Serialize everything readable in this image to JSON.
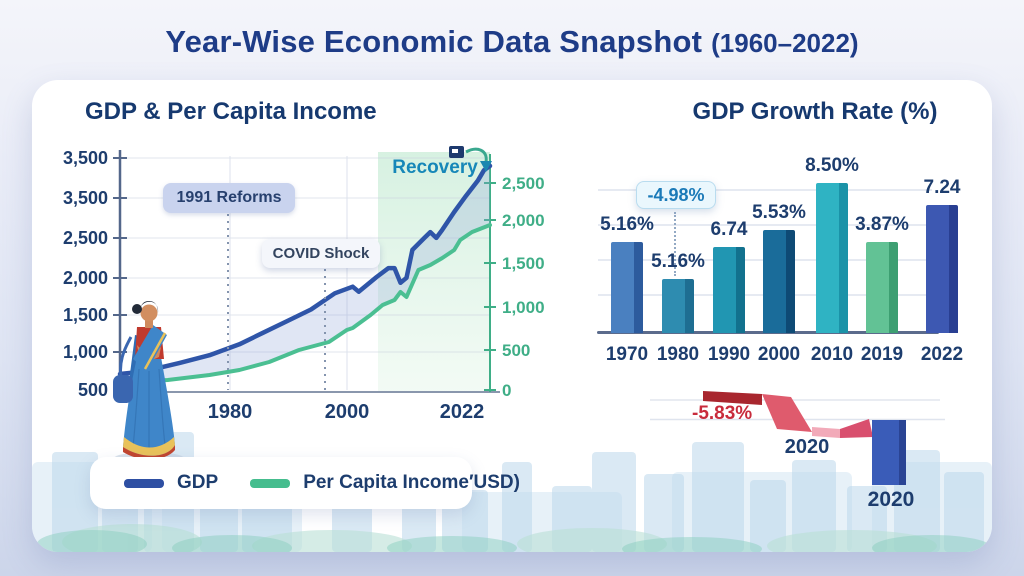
{
  "page_title": {
    "main": "Year-Wise Economic Data Snapshot",
    "range": "(1960–2022)"
  },
  "chart_data": [
    {
      "type": "line",
      "title": "GDP & Per Capita Income",
      "x_range": [
        1960,
        2022
      ],
      "x_ticks": [
        "1980",
        "2000",
        "2022"
      ],
      "grid": true,
      "y_axis_left": {
        "labels": [
          "3,500",
          "3,500",
          "2,500",
          "2,000",
          "1,500",
          "1,000",
          "500"
        ],
        "color": "#1d3d6e"
      },
      "y_axis_right": {
        "labels": [
          "2,500",
          "2,000",
          "1,500",
          "1,000",
          "500",
          "0"
        ],
        "color": "#3fae87"
      },
      "annotations": [
        {
          "id": "reforms",
          "text": "1991 Reforms"
        },
        {
          "id": "covid",
          "text": "COVID Shock"
        },
        {
          "id": "recovery",
          "text": "Recovery"
        }
      ],
      "legend": [
        {
          "label": "GDP",
          "color": "#2e4fa3"
        },
        {
          "label": "Per Capita Income′USD)",
          "color": "#45bd8e"
        }
      ],
      "series": [
        {
          "name": "GDP",
          "color": "#2f55a8",
          "points": [
            [
              1960,
              707
            ],
            [
              1964,
              740
            ],
            [
              1970,
              850
            ],
            [
              1975,
              950
            ],
            [
              1980,
              1090
            ],
            [
              1984,
              1240
            ],
            [
              1988,
              1390
            ],
            [
              1992,
              1540
            ],
            [
              1996,
              1750
            ],
            [
              1999,
              1835
            ],
            [
              2000,
              1770
            ],
            [
              2003,
              1960
            ],
            [
              2005,
              2075
            ],
            [
              2006,
              2075
            ],
            [
              2007,
              1885
            ],
            [
              2008,
              1950
            ],
            [
              2009,
              2310
            ],
            [
              2011,
              2465
            ],
            [
              2012,
              2540
            ],
            [
              2013,
              2465
            ],
            [
              2014,
              2570
            ],
            [
              2016,
              2800
            ],
            [
              2018,
              3010
            ],
            [
              2020,
              3210
            ],
            [
              2021,
              3340
            ],
            [
              2022,
              3395
            ]
          ]
        },
        {
          "name": "Per Capita Income (USD)",
          "color": "#4bbf92",
          "points": [
            [
              1960,
              84
            ],
            [
              1968,
              120
            ],
            [
              1975,
              181
            ],
            [
              1980,
              241
            ],
            [
              1985,
              337
            ],
            [
              1990,
              482
            ],
            [
              1995,
              578
            ],
            [
              1998,
              723
            ],
            [
              1999,
              747
            ],
            [
              2002,
              904
            ],
            [
              2004,
              1024
            ],
            [
              2006,
              1084
            ],
            [
              2007,
              1181
            ],
            [
              2008,
              1120
            ],
            [
              2010,
              1446
            ],
            [
              2012,
              1506
            ],
            [
              2014,
              1590
            ],
            [
              2016,
              1687
            ],
            [
              2017,
              1807
            ],
            [
              2019,
              1904
            ],
            [
              2022,
              1988
            ]
          ]
        }
      ]
    },
    {
      "type": "bar",
      "title": "GDP Growth Rate (%)",
      "categories": [
        "1970",
        "1980",
        "1990",
        "2000",
        "2010",
        "2019",
        "2022"
      ],
      "values": [
        5.16,
        5.16,
        6.74,
        5.53,
        8.5,
        3.87,
        7.24
      ],
      "labels": [
        "5.16%",
        "5.16%",
        "6.74",
        "5.53%",
        "8.50%",
        "3.87%",
        "7.24"
      ],
      "ylim": [
        0,
        9
      ],
      "grid": true,
      "tooltip": {
        "text": "-4.98%"
      },
      "bar_colors": [
        [
          "#4a80c0",
          "#2d5b9d"
        ],
        [
          "#2e8cb0",
          "#1e6e92"
        ],
        [
          "#2196b2",
          "#12718e"
        ],
        [
          "#1a6c9a",
          "#0e4a75"
        ],
        [
          "#2fb3c3",
          "#1b93a8"
        ],
        [
          "#62c295",
          "#3d9f72"
        ],
        [
          "#3d58b2",
          "#293f92"
        ]
      ]
    },
    {
      "type": "waterfall",
      "values": [
        -5.83
      ],
      "drop": {
        "label": "-5.83%",
        "year": "2020"
      },
      "bar": {
        "year": "2020"
      }
    }
  ]
}
